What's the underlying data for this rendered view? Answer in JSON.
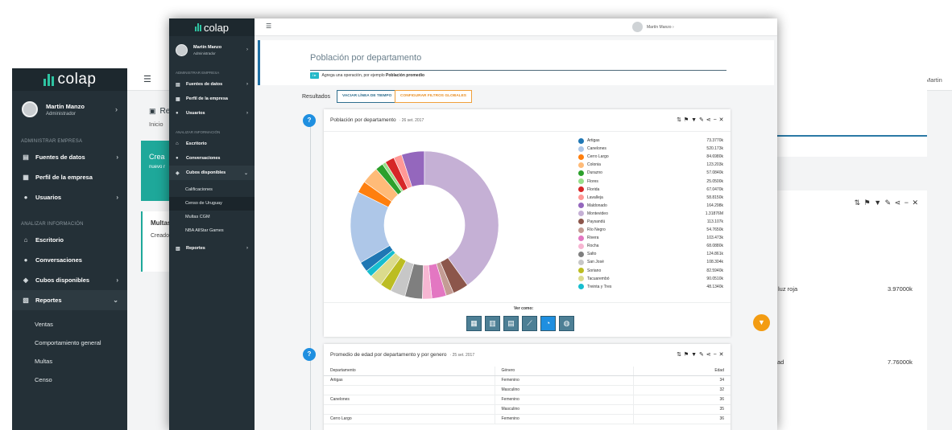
{
  "back": {
    "brand": "colap",
    "user": {
      "name": "Martín Manzo",
      "role": "Administrador"
    },
    "sections": {
      "admin": "ADMINISTRAR EMPRESA",
      "analyze": "ANALIZAR INFORMACIÓN"
    },
    "nav": [
      {
        "label": "Fuentes de datos",
        "icon": "database-icon"
      },
      {
        "label": "Perfil de la empresa",
        "icon": "building-icon"
      },
      {
        "label": "Usuarios",
        "icon": "users-icon"
      },
      {
        "label": "Escritorio",
        "icon": "home-icon"
      },
      {
        "label": "Conversaciones",
        "icon": "chat-icon"
      },
      {
        "label": "Cubos disponibles",
        "icon": "cube-icon"
      },
      {
        "label": "Reportes",
        "icon": "report-icon"
      }
    ],
    "subnav": [
      "Ventas",
      "Comportamiento general",
      "Multas",
      "Censo"
    ],
    "topbar_user": "Martin",
    "page_title": "Repo",
    "breadcrumb": "Inicio",
    "card1": {
      "title": "Crea",
      "subtitle": "nuevo r"
    },
    "card2": {
      "title": "Multas",
      "subtitle": "Creado"
    },
    "row1": {
      "label": "luz roja",
      "value": "3.97000k"
    },
    "row2": {
      "label": "ad",
      "value": "7.76000k"
    }
  },
  "front": {
    "brand": "colap",
    "user": {
      "name": "Martín Manzo",
      "role": "Administrador"
    },
    "sections": {
      "admin": "ADMINISTRAR EMPRESA",
      "analyze": "ANALIZAR INFORMACIÓN"
    },
    "nav": {
      "fuentes": "Fuentes de datos",
      "perfil": "Perfil de la empresa",
      "usuarios": "Usuarios",
      "escritorio": "Escritorio",
      "conversaciones": "Conversaciones",
      "cubos": "Cubos disponibles",
      "reportes": "Reportes"
    },
    "cubes": [
      "Calificaciones",
      "Censo de Uruguay",
      "Multas CGM",
      "NBA AllStar Games"
    ],
    "topbar_user": "Martín Manzo",
    "query": {
      "title": "Población por departamento",
      "hint_tag": "i ▸",
      "hint_text": "Agrega una operación, por ejemplo",
      "hint_example": "Población promedio"
    },
    "results_label": "Resultados",
    "btn_clear": "VACIAR LÍNEA DE TIEMPO",
    "btn_filters": "CONFIGURAR FILTROS GLOBALES",
    "card1": {
      "title": "Población por departamento",
      "date": "· 26 set. 2017",
      "help": "?"
    },
    "ver_como": "Ver como:",
    "card2": {
      "title": "Promedio de edad por departamento y por genero",
      "date": "· 25 set. 2017",
      "help": "?",
      "columns": [
        "Departamento",
        "Género",
        "Edad"
      ],
      "rows": [
        [
          "Artigas",
          "Femenino",
          "34"
        ],
        [
          "",
          "Masculino",
          "32"
        ],
        [
          "Canelones",
          "Femenino",
          "36"
        ],
        [
          "",
          "Masculino",
          "35"
        ],
        [
          "Cerro Largo",
          "Femenino",
          "36"
        ]
      ]
    }
  },
  "chart_data": {
    "type": "pie",
    "title": "Población por departamento",
    "categories": [
      "Artigas",
      "Canelones",
      "Cerro Largo",
      "Colonia",
      "Durazno",
      "Flores",
      "Florida",
      "Lavalleja",
      "Maldonado",
      "Montevideo",
      "Paysandú",
      "Río Negro",
      "Rivera",
      "Rocha",
      "Salto",
      "San José",
      "Soriano",
      "Tacuarembó",
      "Treinta y Tres"
    ],
    "values": [
      73.377,
      520.173,
      84.698,
      123.203,
      57.084,
      25.05,
      67.047,
      58.815,
      164.298,
      1318.76,
      113.107,
      54.765,
      103.473,
      68.088,
      124.861,
      108.304,
      82.594,
      90.051,
      48.134
    ],
    "labels": [
      "73.3770k",
      "520.173k",
      "84.6980k",
      "123.203k",
      "57.0840k",
      "25.0500k",
      "67.0470k",
      "58.8150k",
      "164.298k",
      "1.31876M",
      "113.107k",
      "54.7650k",
      "103.473k",
      "68.0880k",
      "124.861k",
      "108.304k",
      "82.5940k",
      "90.0510k",
      "48.1340k"
    ],
    "colors": [
      "#1f77b4",
      "#aec7e8",
      "#ff7f0e",
      "#ffbb78",
      "#2ca02c",
      "#98df8a",
      "#d62728",
      "#ff9896",
      "#9467bd",
      "#c5b0d5",
      "#8c564b",
      "#c49c94",
      "#e377c2",
      "#f7b6d2",
      "#7f7f7f",
      "#c7c7c7",
      "#bcbd22",
      "#dbdb8d",
      "#17becf"
    ],
    "legend": "right"
  }
}
